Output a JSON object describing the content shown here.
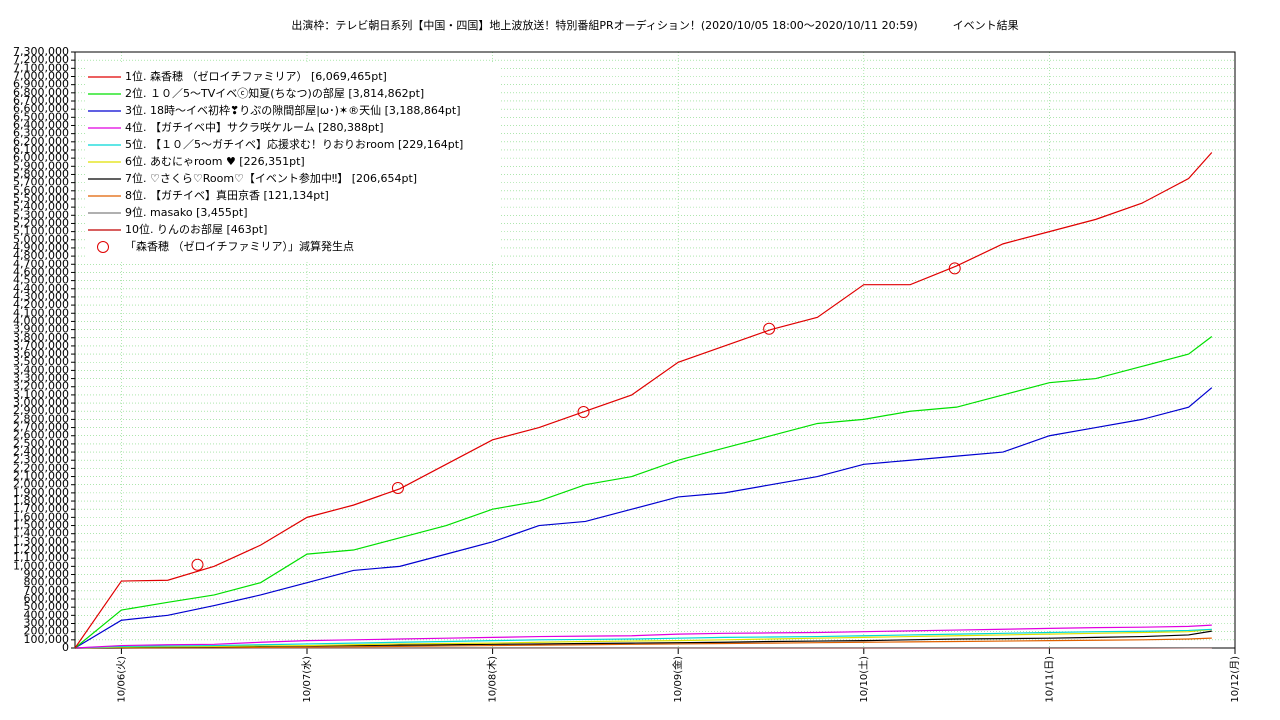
{
  "chart_data": {
    "type": "line",
    "title": "出演枠：テレビ朝日系列【中国・四国】地上波放送！特別番組PRオーディション！(2020/10/05 18:00〜2020/10/11 20:59)          イベント結果",
    "x": [
      5.75,
      6,
      6.25,
      6.5,
      6.75,
      7,
      7.25,
      7.5,
      7.75,
      8,
      8.25,
      8.5,
      8.75,
      9,
      9.25,
      9.5,
      9.75,
      10,
      10.25,
      10.5,
      10.75,
      11,
      11.25,
      11.5,
      11.75,
      11.875
    ],
    "xlim": [
      5.75,
      12
    ],
    "xticks": [
      {
        "value": 6,
        "label": "10/06(火)"
      },
      {
        "value": 7,
        "label": "10/07(水)"
      },
      {
        "value": 8,
        "label": "10/08(木)"
      },
      {
        "value": 9,
        "label": "10/09(金)"
      },
      {
        "value": 10,
        "label": "10/10(土)"
      },
      {
        "value": 11,
        "label": "10/11(日)"
      },
      {
        "value": 12,
        "label": "10/12(月)"
      }
    ],
    "ylim": [
      0,
      7300000
    ],
    "yticks": [
      0,
      {
        "value": 100000,
        "label": "100,000"
      },
      {
        "value": 200000,
        "label": "200,000"
      },
      {
        "value": 300000,
        "label": "300,000"
      },
      {
        "value": 400000,
        "label": "400,000"
      },
      {
        "value": 500000,
        "label": "500,000"
      },
      {
        "value": 600000,
        "label": "600,000"
      },
      {
        "value": 700000,
        "label": "700,000"
      },
      {
        "value": 800000,
        "label": "800,000"
      },
      {
        "value": 900000,
        "label": "900,000"
      },
      {
        "value": 1000000,
        "label": "1,000,000"
      },
      {
        "value": 1100000,
        "label": "1,100,000"
      },
      {
        "value": 1200000,
        "label": "1,200,000"
      },
      {
        "value": 1300000,
        "label": "1,300,000"
      },
      {
        "value": 1400000,
        "label": "1,400,000"
      },
      {
        "value": 1500000,
        "label": "1,500,000"
      },
      {
        "value": 1600000,
        "label": "1,600,000"
      },
      {
        "value": 1700000,
        "label": "1,700,000"
      },
      {
        "value": 1800000,
        "label": "1,800,000"
      },
      {
        "value": 1900000,
        "label": "1,900,000"
      },
      {
        "value": 2000000,
        "label": "2,000,000"
      },
      {
        "value": 2100000,
        "label": "2,100,000"
      },
      {
        "value": 2200000,
        "label": "2,200,000"
      },
      {
        "value": 2300000,
        "label": "2,300,000"
      },
      {
        "value": 2400000,
        "label": "2,400,000"
      },
      {
        "value": 2500000,
        "label": "2,500,000"
      },
      {
        "value": 2600000,
        "label": "2,600,000"
      },
      {
        "value": 2700000,
        "label": "2,700,000"
      },
      {
        "value": 2800000,
        "label": "2,800,000"
      },
      {
        "value": 2900000,
        "label": "2,900,000"
      },
      {
        "value": 3000000,
        "label": "3,000,000"
      },
      {
        "value": 3100000,
        "label": "3,100,000"
      },
      {
        "value": 3200000,
        "label": "3,200,000"
      },
      {
        "value": 3300000,
        "label": "3,300,000"
      },
      {
        "value": 3400000,
        "label": "3,400,000"
      },
      {
        "value": 3500000,
        "label": "3,500,000"
      },
      {
        "value": 3600000,
        "label": "3,600,000"
      },
      {
        "value": 3700000,
        "label": "3,700,000"
      },
      {
        "value": 3800000,
        "label": "3,800,000"
      },
      {
        "value": 3900000,
        "label": "3,900,000"
      },
      {
        "value": 4000000,
        "label": "4,000,000"
      },
      {
        "value": 4100000,
        "label": "4,100,000"
      },
      {
        "value": 4200000,
        "label": "4,200,000"
      },
      {
        "value": 4300000,
        "label": "4,300,000"
      },
      {
        "value": 4400000,
        "label": "4,400,000"
      },
      {
        "value": 4500000,
        "label": "4,500,000"
      },
      {
        "value": 4600000,
        "label": "4,600,000"
      },
      {
        "value": 4700000,
        "label": "4,700,000"
      },
      {
        "value": 4800000,
        "label": "4,800,000"
      },
      {
        "value": 4900000,
        "label": "4,900,000"
      },
      {
        "value": 5000000,
        "label": "5,000,000"
      },
      {
        "value": 5100000,
        "label": "5,100,000"
      },
      {
        "value": 5200000,
        "label": "5,200,000"
      },
      {
        "value": 5300000,
        "label": "5,300,000"
      },
      {
        "value": 5400000,
        "label": "5,400,000"
      },
      {
        "value": 5500000,
        "label": "5,500,000"
      },
      {
        "value": 5600000,
        "label": "5,600,000"
      },
      {
        "value": 5700000,
        "label": "5,700,000"
      },
      {
        "value": 5800000,
        "label": "5,800,000"
      },
      {
        "value": 5900000,
        "label": "5,900,000"
      },
      {
        "value": 6000000,
        "label": "6,000,000"
      },
      {
        "value": 6100000,
        "label": "6,100,000"
      },
      {
        "value": 6200000,
        "label": "6,200,000"
      },
      {
        "value": 6300000,
        "label": "6,300,000"
      },
      {
        "value": 6400000,
        "label": "6,400,000"
      },
      {
        "value": 6500000,
        "label": "6,500,000"
      },
      {
        "value": 6600000,
        "label": "6,600,000"
      },
      {
        "value": 6700000,
        "label": "6,700,000"
      },
      {
        "value": 6800000,
        "label": "6,800,000"
      },
      {
        "value": 6900000,
        "label": "6,900,000"
      },
      {
        "value": 7000000,
        "label": "7,000,000"
      },
      {
        "value": 7100000,
        "label": "7,100,000"
      },
      {
        "value": 7200000,
        "label": "7,200,000"
      },
      {
        "value": 7300000,
        "label": "7,300,000"
      }
    ],
    "grid": true,
    "legend": "upper left",
    "series": [
      {
        "name": "1位. 森香穂 （ゼロイチファミリア） [6,069,465pt]",
        "color": "#e00000",
        "values": [
          0,
          820000,
          830000,
          1000000,
          1260000,
          1600000,
          1750000,
          1950000,
          2250000,
          2550000,
          2700000,
          2900000,
          3100000,
          3500000,
          3700000,
          3900000,
          4050000,
          4450000,
          4450000,
          4680000,
          4950000,
          5100000,
          5250000,
          5450000,
          5750000,
          6069465
        ]
      },
      {
        "name": "2位. １０／5〜TVイベⓒ知夏(ちなつ)の部屋 [3,814,862pt]",
        "color": "#00e000",
        "values": [
          0,
          465000,
          560000,
          650000,
          800000,
          1150000,
          1200000,
          1350000,
          1500000,
          1700000,
          1800000,
          2000000,
          2100000,
          2300000,
          2450000,
          2600000,
          2750000,
          2800000,
          2900000,
          2950000,
          3100000,
          3250000,
          3300000,
          3450000,
          3600000,
          3814862
        ]
      },
      {
        "name": "3位. 18時〜イベ初枠❣りぷの隙間部屋|ω･)✶®天仙 [3,188,864pt]",
        "color": "#0000d0",
        "values": [
          0,
          340000,
          400000,
          520000,
          650000,
          800000,
          950000,
          1000000,
          1150000,
          1300000,
          1500000,
          1550000,
          1700000,
          1850000,
          1900000,
          2000000,
          2100000,
          2250000,
          2300000,
          2350000,
          2400000,
          2600000,
          2700000,
          2800000,
          2950000,
          3188864
        ]
      },
      {
        "name": "4位. 【ガチイベ中】サクラ咲ケルーム [280,388pt]",
        "color": "#e000e0",
        "values": [
          0,
          30000,
          40000,
          45000,
          70000,
          90000,
          100000,
          110000,
          120000,
          130000,
          140000,
          145000,
          150000,
          170000,
          180000,
          185000,
          190000,
          200000,
          210000,
          220000,
          230000,
          240000,
          250000,
          255000,
          265000,
          280388
        ]
      },
      {
        "name": "5位. 【１０／5〜ガチイベ】応援求む！りおりおroom [229,164pt]",
        "color": "#00d8d8",
        "values": [
          0,
          20000,
          25000,
          30000,
          40000,
          50000,
          60000,
          70000,
          80000,
          90000,
          100000,
          105000,
          110000,
          120000,
          130000,
          135000,
          140000,
          150000,
          160000,
          170000,
          180000,
          190000,
          200000,
          205000,
          215000,
          229164
        ]
      },
      {
        "name": "6位. あむにゃroom ♥ [226,351pt]",
        "color": "#e0e000",
        "values": [
          0,
          10000,
          15000,
          20000,
          25000,
          30000,
          40000,
          50000,
          55000,
          60000,
          70000,
          80000,
          85000,
          90000,
          100000,
          110000,
          120000,
          130000,
          140000,
          150000,
          160000,
          170000,
          180000,
          190000,
          200000,
          226351
        ]
      },
      {
        "name": "7位. ♡さくら♡Room♡【イベント参加中‼】 [206,654pt]",
        "color": "#000000",
        "values": [
          0,
          5000,
          10000,
          15000,
          20000,
          25000,
          30000,
          35000,
          40000,
          45000,
          50000,
          55000,
          60000,
          65000,
          70000,
          80000,
          85000,
          90000,
          100000,
          110000,
          115000,
          120000,
          130000,
          140000,
          160000,
          206654
        ]
      },
      {
        "name": "8位. 【ガチイベ】真田京香 [121,134pt]",
        "color": "#e06000",
        "values": [
          0,
          2000,
          4000,
          6000,
          8000,
          10000,
          15000,
          20000,
          25000,
          30000,
          35000,
          40000,
          45000,
          50000,
          55000,
          60000,
          65000,
          70000,
          75000,
          80000,
          85000,
          90000,
          95000,
          100000,
          110000,
          121134
        ]
      },
      {
        "name": "9位. masako [3,455pt]",
        "color": "#808080",
        "values": [
          0,
          150,
          300,
          450,
          600,
          750,
          900,
          1050,
          1200,
          1350,
          1500,
          1650,
          1800,
          1950,
          2100,
          2250,
          2400,
          2550,
          2700,
          2850,
          3000,
          3100,
          3200,
          3300,
          3400,
          3455
        ]
      },
      {
        "name": "10位. りんのお部屋 [463pt]",
        "color": "#c00000",
        "values": [
          0,
          20,
          40,
          60,
          80,
          100,
          120,
          140,
          160,
          180,
          200,
          220,
          240,
          260,
          280,
          300,
          320,
          340,
          360,
          380,
          400,
          420,
          440,
          450,
          460,
          463
        ]
      }
    ],
    "markers": {
      "name": "「森香穂 （ゼロイチファミリア）」減算発生点",
      "color": "#e00000",
      "x": [
        6.41,
        7.49,
        8.49,
        9.49,
        10.49
      ],
      "values": [
        1020000,
        1960000,
        2890000,
        3910000,
        4650000
      ]
    }
  }
}
